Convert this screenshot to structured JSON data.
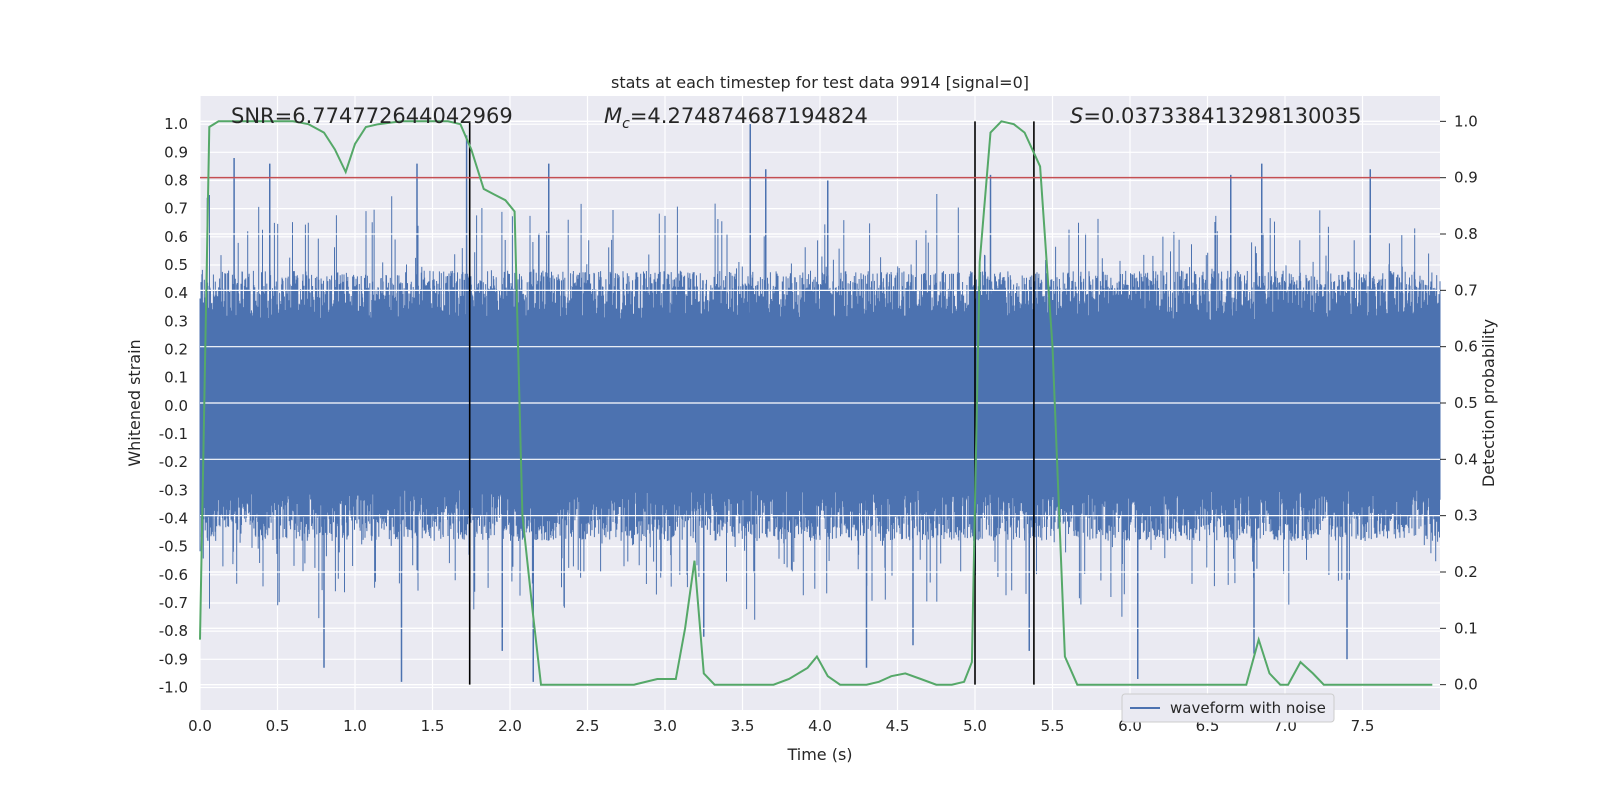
{
  "chart_data": {
    "type": "line",
    "title": "stats at each timestep for test data 9914 [signal=0]",
    "xlabel": "Time (s)",
    "ylabel": "Whitened strain",
    "y2label": "Detection probability",
    "xlim": [
      0.0,
      8.0
    ],
    "ylim": [
      -1.08,
      1.1
    ],
    "y2lim": [
      -0.045,
      1.045
    ],
    "x_ticks": [
      "0.0",
      "0.5",
      "1.0",
      "1.5",
      "2.0",
      "2.5",
      "3.0",
      "3.5",
      "4.0",
      "4.5",
      "5.0",
      "5.5",
      "6.0",
      "6.5",
      "7.0",
      "7.5"
    ],
    "y_ticks": [
      "1.0",
      "0.9",
      "0.8",
      "0.7",
      "0.6",
      "0.5",
      "0.4",
      "0.3",
      "0.2",
      "0.1",
      "0.0",
      "-0.1",
      "-0.2",
      "-0.3",
      "-0.4",
      "-0.5",
      "-0.6",
      "-0.7",
      "-0.8",
      "-0.9",
      "-1.0"
    ],
    "y2_ticks": [
      "1.0",
      "0.9",
      "0.8",
      "0.7",
      "0.6",
      "0.5",
      "0.4",
      "0.3",
      "0.2",
      "0.1",
      "0.0"
    ],
    "grid": true,
    "legend": {
      "position": "bottom-right",
      "entries": [
        "waveform with noise"
      ]
    },
    "annotations": {
      "snr": "SNR=6.774772644042969",
      "mc_symbol": "M",
      "mc_sub": "c",
      "mc_value": "=4.274874687194824",
      "s_symbol": "S",
      "s_value": "=0.037338413298130035"
    },
    "threshold": {
      "y2": 0.9,
      "color": "#c44e52"
    },
    "vertical_markers_x": [
      1.74,
      5.0,
      5.38
    ],
    "series": [
      {
        "name": "waveform with noise",
        "color": "#4c72b0",
        "axis": "left",
        "summary": {
          "duration_s": 8.0,
          "typical_amplitude_range": [
            -0.45,
            0.45
          ],
          "peaks_x": [
            0.22,
            0.45,
            1.4,
            1.72,
            2.25,
            3.55,
            3.65,
            4.05,
            5.1,
            6.65,
            6.85,
            7.55
          ],
          "peaks_y": [
            0.88,
            0.86,
            0.86,
            0.96,
            0.86,
            1.0,
            0.84,
            0.8,
            0.82,
            0.82,
            0.86,
            0.84
          ],
          "troughs_x": [
            0.8,
            1.3,
            1.95,
            2.15,
            3.25,
            4.3,
            4.6,
            5.35,
            6.05,
            6.8,
            7.4
          ],
          "troughs_y": [
            -0.93,
            -0.98,
            -0.87,
            -0.98,
            -0.82,
            -0.93,
            -0.85,
            -0.87,
            -0.97,
            -0.88,
            -0.9
          ]
        }
      },
      {
        "name": "detection probability",
        "color": "#55a868",
        "axis": "right",
        "x": [
          0.0,
          0.06,
          0.12,
          0.2,
          0.4,
          0.6,
          0.7,
          0.8,
          0.87,
          0.94,
          1.0,
          1.07,
          1.15,
          1.3,
          1.4,
          1.6,
          1.68,
          1.75,
          1.83,
          1.9,
          1.97,
          2.03,
          2.08,
          2.15,
          2.2,
          2.5,
          2.8,
          2.95,
          3.07,
          3.13,
          3.19,
          3.25,
          3.32,
          3.5,
          3.7,
          3.8,
          3.92,
          3.98,
          4.05,
          4.13,
          4.3,
          4.38,
          4.46,
          4.55,
          4.65,
          4.75,
          4.85,
          4.93,
          4.98,
          5.03,
          5.1,
          5.17,
          5.25,
          5.32,
          5.42,
          5.5,
          5.58,
          5.66,
          5.8,
          6.0,
          6.2,
          6.5,
          6.75,
          6.83,
          6.9,
          6.97,
          7.02,
          7.1,
          7.18,
          7.25,
          7.5,
          7.75,
          7.95
        ],
        "y": [
          0.08,
          0.99,
          1.0,
          1.0,
          1.0,
          1.0,
          0.995,
          0.98,
          0.95,
          0.91,
          0.96,
          0.99,
          0.995,
          1.0,
          1.0,
          1.0,
          0.995,
          0.95,
          0.88,
          0.87,
          0.86,
          0.84,
          0.3,
          0.12,
          0.0,
          0.0,
          0.0,
          0.01,
          0.01,
          0.1,
          0.22,
          0.02,
          0.0,
          0.0,
          0.0,
          0.01,
          0.03,
          0.05,
          0.015,
          0.0,
          0.0,
          0.005,
          0.015,
          0.02,
          0.01,
          0.0,
          0.0,
          0.005,
          0.04,
          0.75,
          0.98,
          1.0,
          0.995,
          0.98,
          0.92,
          0.6,
          0.05,
          0.0,
          0.0,
          0.0,
          0.0,
          0.0,
          0.0,
          0.08,
          0.02,
          0.0,
          0.0,
          0.04,
          0.02,
          0.0,
          0.0,
          0.0,
          0.0
        ]
      }
    ]
  }
}
